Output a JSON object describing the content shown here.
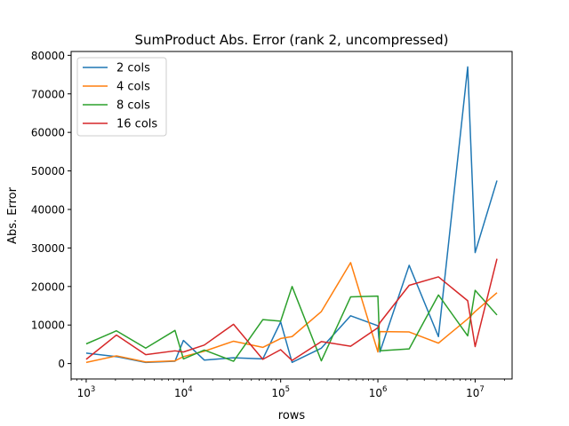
{
  "chart_data": {
    "type": "line",
    "title": "SumProduct Abs. Error (rank 2, uncompressed)",
    "xlabel": "rows",
    "ylabel": "Abs. Error",
    "xscale": "log",
    "xlim": [
      700,
      24000000
    ],
    "ylim": [
      -4000,
      81000
    ],
    "xticks": [
      {
        "value": 1000,
        "base": "10",
        "exp": "3"
      },
      {
        "value": 10000,
        "base": "10",
        "exp": "4"
      },
      {
        "value": 100000,
        "base": "10",
        "exp": "5"
      },
      {
        "value": 1000000,
        "base": "10",
        "exp": "6"
      },
      {
        "value": 10000000,
        "base": "10",
        "exp": "7"
      }
    ],
    "yticks": [
      {
        "value": 0,
        "label": "0"
      },
      {
        "value": 10000,
        "label": "10000"
      },
      {
        "value": 20000,
        "label": "20000"
      },
      {
        "value": 30000,
        "label": "30000"
      },
      {
        "value": 40000,
        "label": "40000"
      },
      {
        "value": 50000,
        "label": "50000"
      },
      {
        "value": 60000,
        "label": "60000"
      },
      {
        "value": 70000,
        "label": "70000"
      },
      {
        "value": 80000,
        "label": "80000"
      }
    ],
    "grid": false,
    "legend_position": "top-left",
    "x": [
      1000,
      2048,
      4096,
      8192,
      10000,
      16384,
      32768,
      65536,
      100000,
      131072,
      262144,
      524288,
      1000000,
      1048576,
      2097152,
      4194304,
      8388608,
      10000000,
      16777216
    ],
    "series": [
      {
        "name": "2 cols",
        "color": "#1f77b4",
        "values": [
          2700,
          1800,
          300,
          600,
          6000,
          900,
          1500,
          1200,
          10800,
          300,
          4000,
          12400,
          9800,
          3000,
          25500,
          7000,
          77000,
          28800,
          47500
        ]
      },
      {
        "name": "4 cols",
        "color": "#ff7f0e",
        "values": [
          300,
          2000,
          400,
          700,
          1800,
          3200,
          5800,
          4200,
          6500,
          7000,
          13500,
          26200,
          3000,
          8300,
          8200,
          5300,
          11600,
          13500,
          18400
        ]
      },
      {
        "name": "8 cols",
        "color": "#2ca02c",
        "values": [
          5100,
          8500,
          4000,
          8600,
          1200,
          3500,
          600,
          11400,
          11000,
          20000,
          700,
          17300,
          17500,
          3300,
          3800,
          17800,
          7200,
          19000,
          12600
        ]
      },
      {
        "name": "16 cols",
        "color": "#d62728",
        "values": [
          1100,
          7400,
          2300,
          3300,
          3000,
          4800,
          10200,
          1100,
          3600,
          800,
          5700,
          4500,
          9300,
          10600,
          20300,
          22500,
          16300,
          4400,
          27200
        ]
      }
    ]
  }
}
